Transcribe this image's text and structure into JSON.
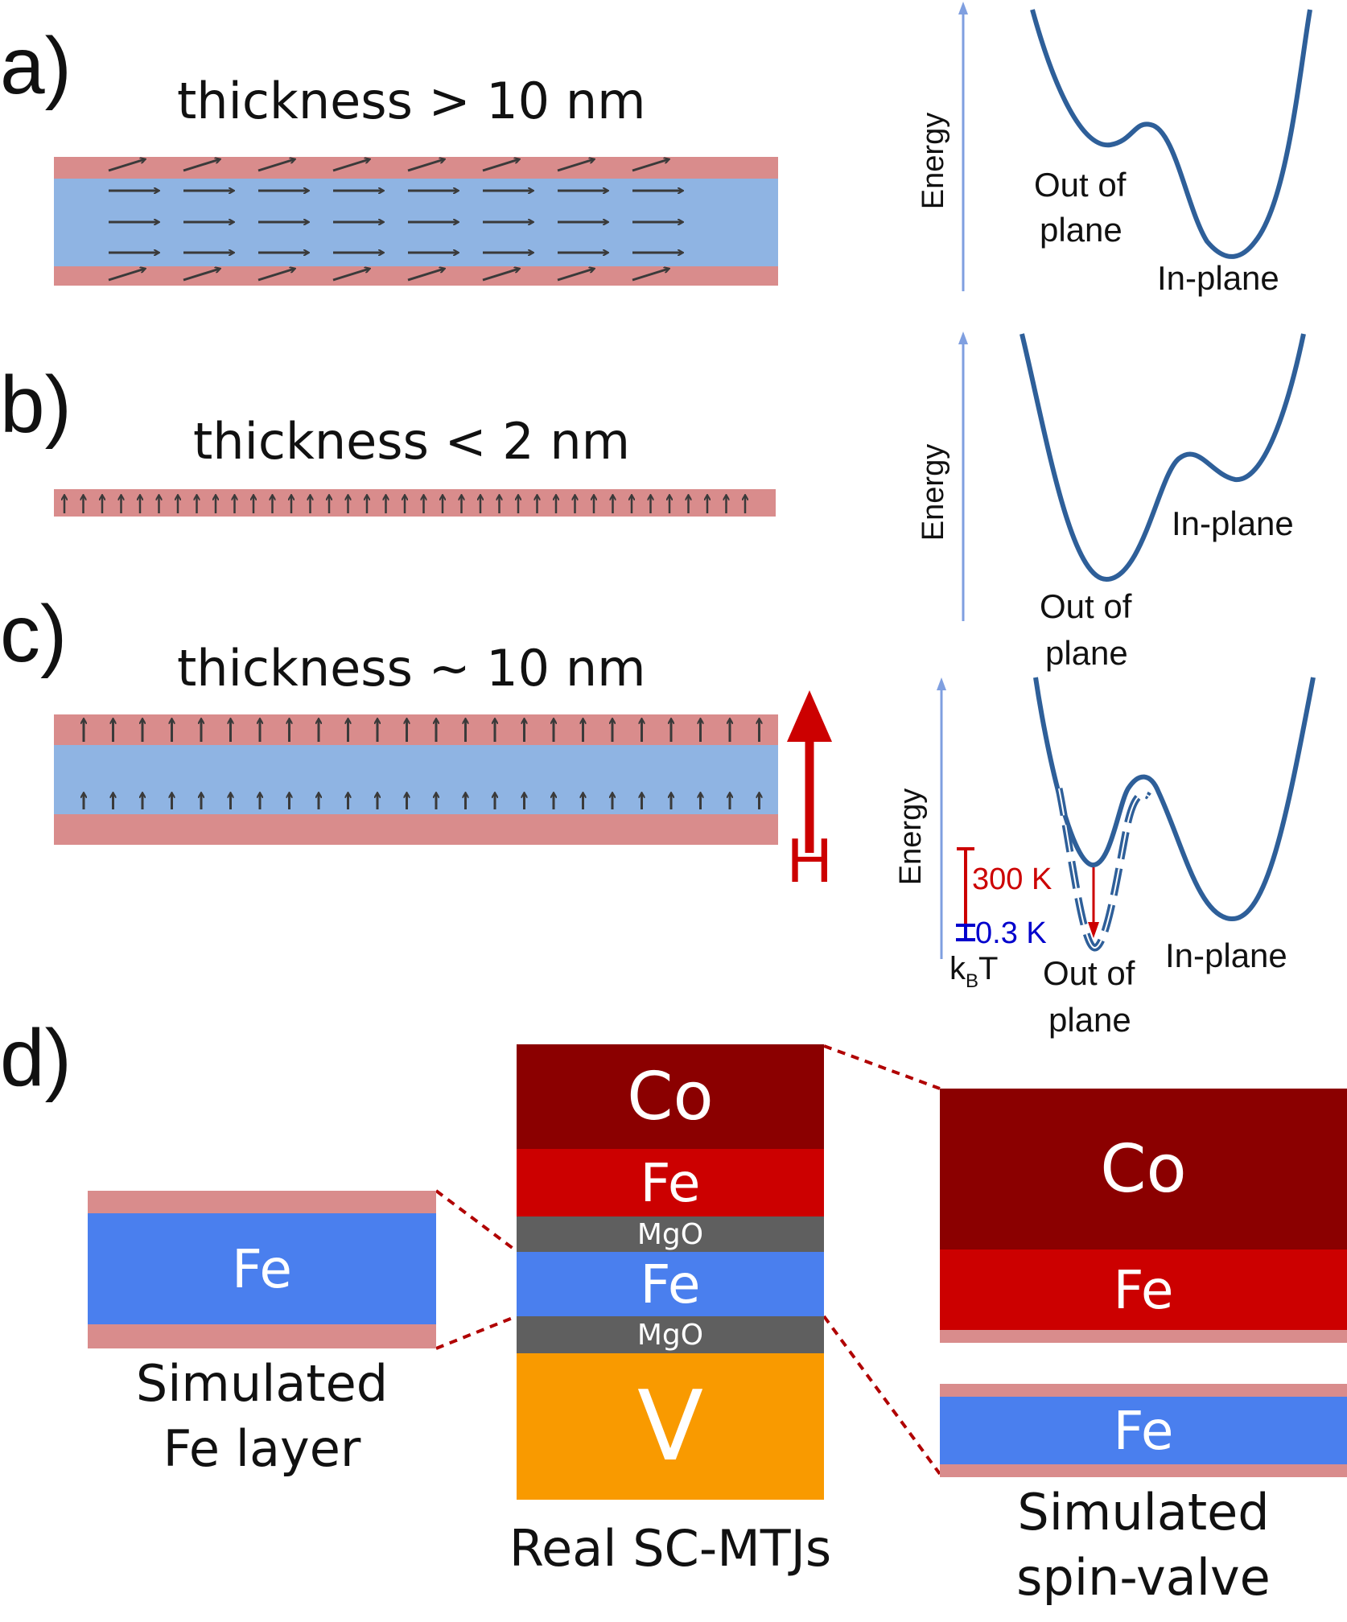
{
  "panels": {
    "a": {
      "label": "a)",
      "title": "thickness > 10 nm",
      "energy_axis": "Energy",
      "well_labels": {
        "out_of_plane_1": "Out of",
        "out_of_plane_2": "plane",
        "in_plane": "In-plane"
      }
    },
    "b": {
      "label": "b)",
      "title": "thickness < 2 nm",
      "energy_axis": "Energy",
      "well_labels": {
        "in_plane": "In-plane",
        "out_of_plane_1": "Out of",
        "out_of_plane_2": "plane"
      }
    },
    "c": {
      "label": "c)",
      "title": "thickness ~ 10 nm",
      "field_label": "H",
      "energy_axis": "Energy",
      "temp_300": "300 K",
      "temp_03": "0.3 K",
      "kbt_k": "k",
      "kbt_b": "B",
      "kbt_t": "T",
      "well_labels": {
        "in_plane": "In-plane",
        "out_of_plane_1": "Out of",
        "out_of_plane_2": "plane"
      }
    },
    "d": {
      "label": "d)",
      "left": {
        "layer": "Fe",
        "caption_1": "Simulated",
        "caption_2": "Fe layer"
      },
      "middle": {
        "layers": {
          "co": "Co",
          "fe_top": "Fe",
          "mgo_top": "MgO",
          "fe_mid": "Fe",
          "mgo_bottom": "MgO",
          "v": "V"
        },
        "caption": "Real SC-MTJs"
      },
      "right": {
        "co": "Co",
        "fe_top": "Fe",
        "fe_bottom": "Fe",
        "caption_1": "Simulated",
        "caption_2": "spin-valve"
      }
    }
  },
  "colors": {
    "surface_layer": "#d98c8c",
    "bulk_layer": "#8fb4e3",
    "curve": "#2e5f99",
    "axis": "#7f9fe0",
    "field_arrow": "#cc0000",
    "co": "#8b0000",
    "fe_red": "#cc0000",
    "mgo": "#5f5f5f",
    "fe_blue": "#4a7fee",
    "v": "#f99a00",
    "temp_300": "#cc0000",
    "temp_03": "#0000cc"
  }
}
